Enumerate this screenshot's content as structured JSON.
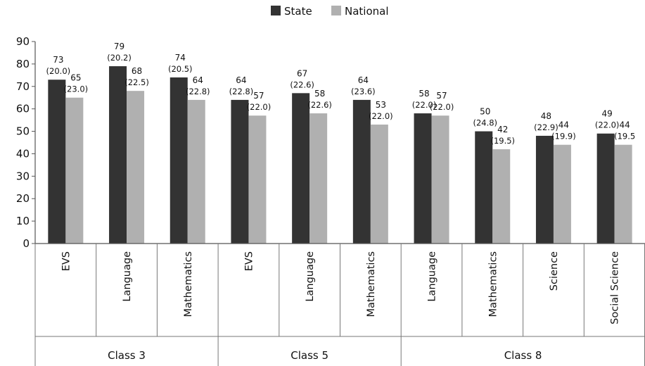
{
  "chart_data": {
    "type": "bar",
    "y_axis": {
      "min": 0,
      "max": 90,
      "ticks": [
        "0",
        "10",
        "20",
        "30",
        "40",
        "50",
        "60",
        "70",
        "80",
        "90"
      ]
    },
    "legend": {
      "position": "top-center",
      "items": [
        {
          "name": "State",
          "color": "#333333"
        },
        {
          "name": "National",
          "color": "#b0b0b0"
        }
      ]
    },
    "groups": [
      {
        "label": "Class 3",
        "categories": [
          "EVS",
          "Language",
          "Mathematics"
        ]
      },
      {
        "label": "Class 5",
        "categories": [
          "EVS",
          "Language",
          "Mathematics"
        ]
      },
      {
        "label": "Class 8",
        "categories": [
          "Language",
          "Mathematics",
          "Science",
          "Social Science"
        ]
      }
    ],
    "categories": [
      "EVS",
      "Language",
      "Mathematics",
      "EVS",
      "Language",
      "Mathematics",
      "Language",
      "Mathematics",
      "Science",
      "Social Science"
    ],
    "series": [
      {
        "name": "State",
        "values": [
          73,
          79,
          74,
          64,
          67,
          64,
          58,
          50,
          48,
          49
        ],
        "value_labels": [
          "73",
          "79",
          "74",
          "64",
          "67",
          "64",
          "58",
          "50",
          "48",
          "49"
        ],
        "sd_labels": [
          "(20.0)",
          "(20.2)",
          "(20.5)",
          "(22.8)",
          "(22.6)",
          "(23.6)",
          "(22.0)",
          "(24.8)",
          "(22.9)",
          "(22.0)"
        ]
      },
      {
        "name": "National",
        "values": [
          65,
          68,
          64,
          57,
          58,
          53,
          57,
          42,
          44,
          44
        ],
        "value_labels": [
          "65",
          "68",
          "64",
          "57",
          "58",
          "53",
          "57",
          "42",
          "44",
          "44"
        ],
        "sd_labels": [
          "(23.0)",
          "(22.5)",
          "(22.8)",
          "(22.0)",
          "(22.6)",
          "(22.0)",
          "(22.0)",
          "(19.5)",
          "(19.9)",
          "(19.5"
        ]
      }
    ]
  }
}
